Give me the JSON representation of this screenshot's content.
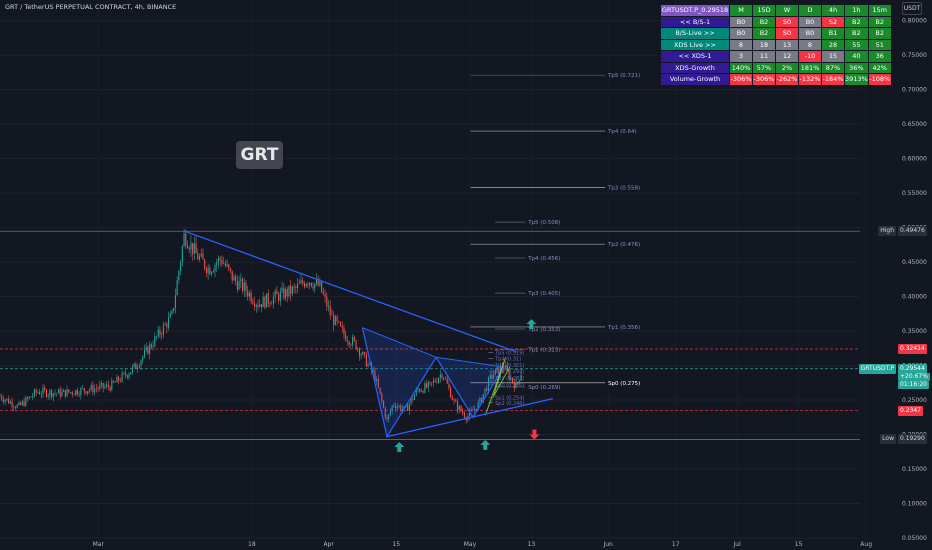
{
  "header": {
    "title": "GRT / TetherUS PERPETUAL CONTRACT, 4h, BINANCE",
    "currency_button": "USDT"
  },
  "symbol_badge": "GRT",
  "colors": {
    "background": "#131722",
    "up_candle": "#26a69a",
    "down_candle": "#ef5350",
    "wedge": "#2962ff",
    "green": "#4caf50",
    "red": "#f23645"
  },
  "signal_table": {
    "header": [
      "GRTUSDT.P_0.29518",
      "M",
      "15D",
      "W",
      "D",
      "4h",
      "1h",
      "15m"
    ],
    "rows": [
      {
        "label": "<< B/S-1",
        "cells": [
          "B0",
          "B2",
          "S0",
          "B0",
          "S2",
          "B2",
          "B2"
        ],
        "colors": [
          "#787b86",
          "#1b8a2c",
          "#f23645",
          "#787b86",
          "#f23645",
          "#1b8a2c",
          "#1b8a2c"
        ]
      },
      {
        "label": "B/S-Live >>",
        "cells": [
          "B0",
          "B2",
          "S0",
          "B0",
          "B1",
          "B2",
          "B2"
        ],
        "colors": [
          "#787b86",
          "#1b8a2c",
          "#f23645",
          "#787b86",
          "#1b8a2c",
          "#1b8a2c",
          "#1b8a2c"
        ]
      },
      {
        "label": "XDS Live >>",
        "cells": [
          "8",
          "18",
          "13",
          "8",
          "28",
          "55",
          "51"
        ],
        "colors": [
          "#787b86",
          "#787b86",
          "#787b86",
          "#787b86",
          "#1b8a2c",
          "#1b8a2c",
          "#1b8a2c"
        ]
      },
      {
        "label": "<< XDS-1",
        "cells": [
          "3",
          "11",
          "12",
          "-10",
          "15",
          "40",
          "36"
        ],
        "colors": [
          "#787b86",
          "#787b86",
          "#787b86",
          "#f23645",
          "#787b86",
          "#1b8a2c",
          "#1b8a2c"
        ]
      },
      {
        "label": "XDS-Growth",
        "cells": [
          "140%",
          "57%",
          "2%",
          "181%",
          "87%",
          "36%",
          "42%"
        ],
        "colors": [
          "#1b8a2c",
          "#1b8a2c",
          "#1b8a2c",
          "#1b8a2c",
          "#1b8a2c",
          "#1b8a2c",
          "#1b8a2c"
        ]
      },
      {
        "label": "Volume-Growth",
        "cells": [
          "-306%",
          "-306%",
          "-262%",
          "-132%",
          "-184%",
          "3913%",
          "-108%"
        ],
        "colors": [
          "#f23645",
          "#f23645",
          "#f23645",
          "#f23645",
          "#f23645",
          "#1b8a2c",
          "#f23645"
        ]
      }
    ]
  },
  "chart_data": {
    "type": "candlestick",
    "ylim": [
      0.05,
      0.83
    ],
    "x_range": [
      0,
      140
    ],
    "y_ticks": [
      0.8,
      0.75,
      0.7,
      0.65,
      0.6,
      0.55,
      0.5,
      0.45,
      0.4,
      0.35,
      0.3,
      0.25,
      0.2,
      0.15,
      0.1,
      0.05
    ],
    "x_ticks": [
      {
        "x": 16,
        "label": "Mar"
      },
      {
        "x": 41,
        "label": "18"
      },
      {
        "x": 53.5,
        "label": "Apr"
      },
      {
        "x": 64.5,
        "label": "15"
      },
      {
        "x": 76.5,
        "label": "May"
      },
      {
        "x": 86.5,
        "label": "13"
      },
      {
        "x": 99,
        "label": "Jun"
      },
      {
        "x": 110,
        "label": "17"
      },
      {
        "x": 120,
        "label": "Jul"
      },
      {
        "x": 130,
        "label": "15"
      },
      {
        "x": 141,
        "label": "Aug"
      }
    ],
    "price_path": [
      [
        0,
        0.256
      ],
      [
        3,
        0.24
      ],
      [
        6,
        0.262
      ],
      [
        10,
        0.26
      ],
      [
        14,
        0.265
      ],
      [
        18,
        0.27
      ],
      [
        22,
        0.298
      ],
      [
        25,
        0.335
      ],
      [
        28,
        0.372
      ],
      [
        30,
        0.49
      ],
      [
        32,
        0.46
      ],
      [
        34,
        0.44
      ],
      [
        36,
        0.455
      ],
      [
        38,
        0.425
      ],
      [
        40,
        0.41
      ],
      [
        42,
        0.39
      ],
      [
        45,
        0.4
      ],
      [
        48,
        0.41
      ],
      [
        50,
        0.425
      ],
      [
        52,
        0.415
      ],
      [
        54,
        0.37
      ],
      [
        56,
        0.345
      ],
      [
        58,
        0.33
      ],
      [
        61,
        0.285
      ],
      [
        63,
        0.22
      ],
      [
        64,
        0.245
      ],
      [
        66,
        0.235
      ],
      [
        68,
        0.265
      ],
      [
        70,
        0.27
      ],
      [
        72,
        0.29
      ],
      [
        74,
        0.245
      ],
      [
        76,
        0.225
      ],
      [
        78,
        0.245
      ],
      [
        80,
        0.285
      ],
      [
        82,
        0.298
      ],
      [
        84,
        0.27
      ],
      [
        85,
        0.295
      ]
    ],
    "wedge_upper": [
      [
        30,
        0.495
      ],
      [
        84,
        0.32
      ]
    ],
    "wedge_lower": [
      [
        63,
        0.197
      ],
      [
        90,
        0.252
      ]
    ],
    "xabcd": [
      [
        59,
        0.355
      ],
      [
        63,
        0.197
      ],
      [
        71,
        0.312
      ],
      [
        77,
        0.225
      ],
      [
        82,
        0.298
      ]
    ],
    "fib_levels": [
      {
        "label": "Tp5 (0.721)",
        "y": 0.721,
        "x0": 76.6,
        "x1": 98.5,
        "color": "#787b86"
      },
      {
        "label": "Tp4 (0.64)",
        "y": 0.64,
        "x0": 76.6,
        "x1": 98.5,
        "color": "#d1d4dc"
      },
      {
        "label": "Tp3 (0.558)",
        "y": 0.558,
        "x0": 76.6,
        "x1": 98.5,
        "color": "#d1d4dc"
      },
      {
        "label": "Tp5 (0.508)",
        "y": 0.508,
        "x0": 80.6,
        "x1": 85.5,
        "color": "#787b86"
      },
      {
        "label": "Tp2 (0.476)",
        "y": 0.476,
        "x0": 76.6,
        "x1": 98.5,
        "color": "#d1d4dc"
      },
      {
        "label": "Tp4 (0.456)",
        "y": 0.456,
        "x0": 80.6,
        "x1": 85.5,
        "color": "#787b86"
      },
      {
        "label": "Tp3 (0.405)",
        "y": 0.405,
        "x0": 80.6,
        "x1": 85.5,
        "color": "#787b86"
      },
      {
        "label": "Tp1 (0.356)",
        "y": 0.356,
        "x0": 76.6,
        "x1": 98.5,
        "color": "#d1d4dc"
      },
      {
        "label": "Tp2 (0.353)",
        "y": 0.353,
        "x0": 80.6,
        "x1": 85.5,
        "color": "#787b86"
      },
      {
        "label": "Tp1 (0.323)",
        "y": 0.323,
        "x0": 80.6,
        "x1": 85.5,
        "color": "#787b86"
      },
      {
        "label": "Sp0 (0.275)",
        "y": 0.275,
        "x0": 76.6,
        "x1": 98.5,
        "color": "#ffffff"
      },
      {
        "label": "Sp0 (0.269)",
        "y": 0.269,
        "x0": 80.6,
        "x1": 85.5,
        "color": "#787b86"
      }
    ],
    "small_levels": [
      {
        "label": "Tp5 (0.319)",
        "y": 0.319
      },
      {
        "label": "Tp4 (0.31)",
        "y": 0.31
      },
      {
        "label": "Tp3 (0.301)",
        "y": 0.301
      },
      {
        "label": "Tp2 (0.292)",
        "y": 0.292
      },
      {
        "label": "Tp1 (0.282)",
        "y": 0.282
      },
      {
        "label": "Sp0 (0.272)",
        "y": 0.272
      },
      {
        "label": "Sp1 (0.254)",
        "y": 0.254
      },
      {
        "label": "Sp2 (0.246)",
        "y": 0.246
      }
    ],
    "horizontal_lines": [
      {
        "y": 0.49476,
        "color": "#787b86",
        "dashed": false
      },
      {
        "y": 0.1929,
        "color": "#787b86",
        "dashed": false
      },
      {
        "y": 0.32414,
        "color": "#f23645",
        "dashed": true
      },
      {
        "y": 0.2347,
        "color": "#f23645",
        "dashed": true
      },
      {
        "y": 0.29544,
        "color": "#26a69a",
        "dashed": true
      }
    ],
    "arrows": [
      {
        "x": 65,
        "y": 0.182,
        "dir": "up",
        "color": "#26a69a"
      },
      {
        "x": 79,
        "y": 0.185,
        "dir": "up",
        "color": "#26a69a"
      },
      {
        "x": 86.5,
        "y": 0.36,
        "dir": "up",
        "color": "#26a69a"
      },
      {
        "x": 87,
        "y": 0.2,
        "dir": "down",
        "color": "#f23645"
      }
    ],
    "price_tags": [
      {
        "label": "High",
        "value": "0.49476",
        "y": 0.49476,
        "color": "#2a2e39",
        "text_color": "#d1d4dc"
      },
      {
        "label": "",
        "value": "0.32414",
        "y": 0.32414,
        "color": "#f23645",
        "text_color": "#ffffff"
      },
      {
        "label": "GRTUSDT.P",
        "value": "0.29544",
        "y": 0.29544,
        "color": "#26a69a",
        "text_color": "#ffffff"
      },
      {
        "label": "",
        "value": "0.2347",
        "y": 0.2347,
        "color": "#f23645",
        "text_color": "#ffffff"
      },
      {
        "label": "Low",
        "value": "0.19290",
        "y": 0.1929,
        "color": "#2a2e39",
        "text_color": "#d1d4dc"
      }
    ],
    "last_price_sub": [
      "+20.67%",
      "01:16:20"
    ]
  }
}
